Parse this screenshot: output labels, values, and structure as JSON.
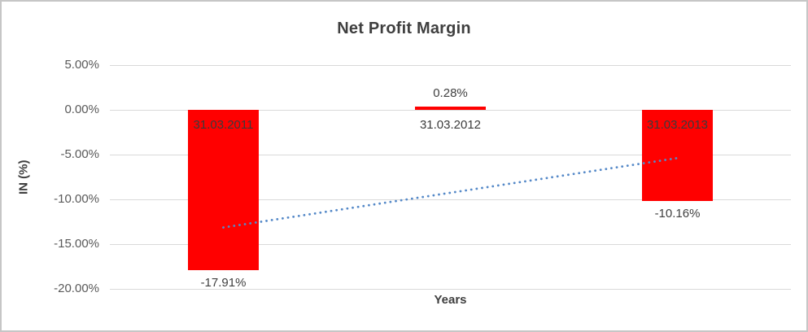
{
  "frame": {
    "border_color": "#c6c6c6",
    "background": "#ffffff"
  },
  "chart_data": {
    "type": "bar",
    "title": "Net Profit Margin",
    "xlabel": "Years",
    "ylabel": "IN (%)",
    "categories": [
      "31.03.2011",
      "31.03.2012",
      "31.03.2013"
    ],
    "values": [
      -17.91,
      0.28,
      -10.16
    ],
    "value_labels": [
      "-17.91%",
      "0.28%",
      "-10.16%"
    ],
    "ylim": [
      -20,
      5
    ],
    "ytick_step": 5,
    "ytick_labels": [
      "5.00%",
      "0.00%",
      "-5.00%",
      "-10.00%",
      "-15.00%",
      "-20.00%"
    ],
    "grid": true,
    "legend": false,
    "bar_color": "#ff0000",
    "gridline_color": "#d9d9d9",
    "tick_label_color": "#595959",
    "category_label_color": "#3b3b3b",
    "value_label_color": "#404040",
    "trendline": {
      "type": "linear",
      "style": "dotted",
      "color": "#5589c8",
      "endpoint_values": [
        -13.14,
        -5.39
      ]
    }
  }
}
